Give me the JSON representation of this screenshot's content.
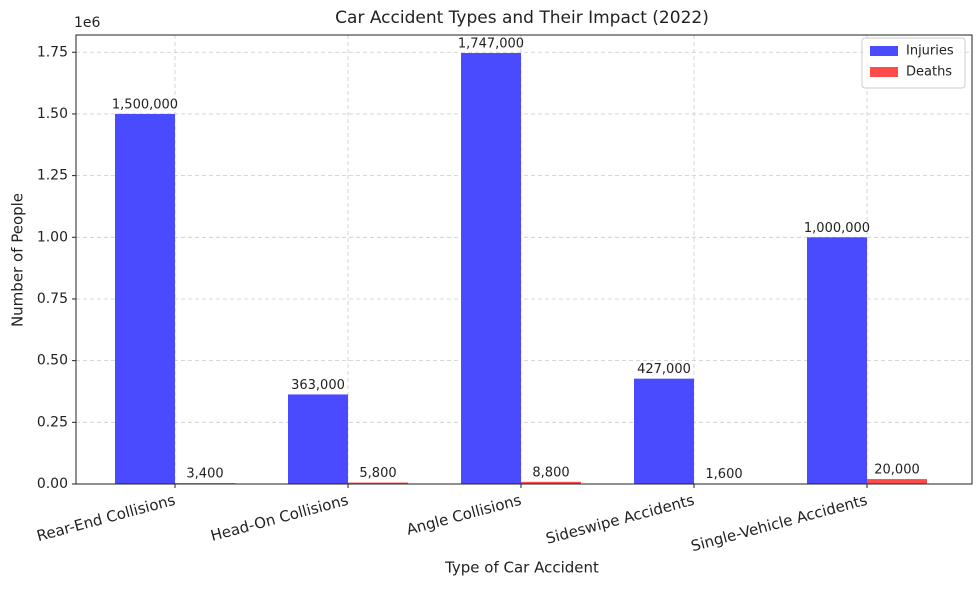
{
  "chart_data": {
    "type": "bar",
    "title": "Car Accident Types and Their Impact (2022)",
    "x_label": "Type of Car Accident",
    "y_label": "Number of People",
    "y_offset_label": "1e6",
    "categories": [
      "Rear-End Collisions",
      "Head-On Collisions",
      "Angle Collisions",
      "Sideswipe Accidents",
      "Single-Vehicle Accidents"
    ],
    "series": [
      {
        "name": "Injuries",
        "color": "#4a4aff",
        "values": [
          1500000,
          363000,
          1747000,
          427000,
          1000000
        ],
        "value_labels": [
          "1,500,000",
          "363,000",
          "1,747,000",
          "427,000",
          "1,000,000"
        ]
      },
      {
        "name": "Deaths",
        "color": "#ff4a4a",
        "values": [
          3400,
          5800,
          8800,
          1600,
          20000
        ],
        "value_labels": [
          "3,400",
          "5,800",
          "8,800",
          "1,600",
          "20,000"
        ]
      }
    ],
    "ylim": [
      0,
      1820000
    ],
    "yticks": [
      {
        "value": 0,
        "label": "0.00"
      },
      {
        "value": 250000,
        "label": "0.25"
      },
      {
        "value": 500000,
        "label": "0.50"
      },
      {
        "value": 750000,
        "label": "0.75"
      },
      {
        "value": 1000000,
        "label": "1.00"
      },
      {
        "value": 1250000,
        "label": "1.25"
      },
      {
        "value": 1500000,
        "label": "1.50"
      },
      {
        "value": 1750000,
        "label": "1.75"
      }
    ],
    "grid": true,
    "legend": "upper right"
  }
}
